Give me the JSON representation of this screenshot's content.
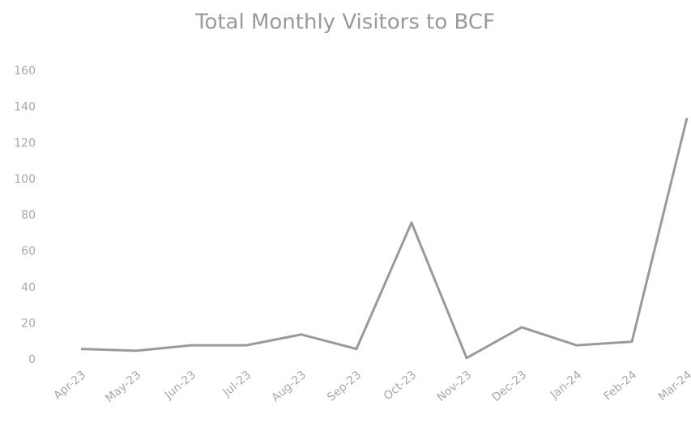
{
  "chart_data": {
    "type": "line",
    "title": "Total Monthly Visitors to BCF",
    "categories": [
      "Apr-23",
      "May-23",
      "Jun-23",
      "Jul-23",
      "Aug-23",
      "Sep-23",
      "Oct-23",
      "Nov-23",
      "Dec-23",
      "Jan-24",
      "Feb-24",
      "Mar-24"
    ],
    "series": [
      {
        "name": "Visitors",
        "color": "#9a9a9a",
        "values": [
          6,
          5,
          8,
          8,
          14,
          6,
          76,
          1,
          18,
          8,
          10,
          134
        ]
      }
    ],
    "ylim": [
      0,
      160
    ],
    "yticks": [
      0,
      20,
      40,
      60,
      80,
      100,
      120,
      140,
      160
    ],
    "grid": false
  }
}
